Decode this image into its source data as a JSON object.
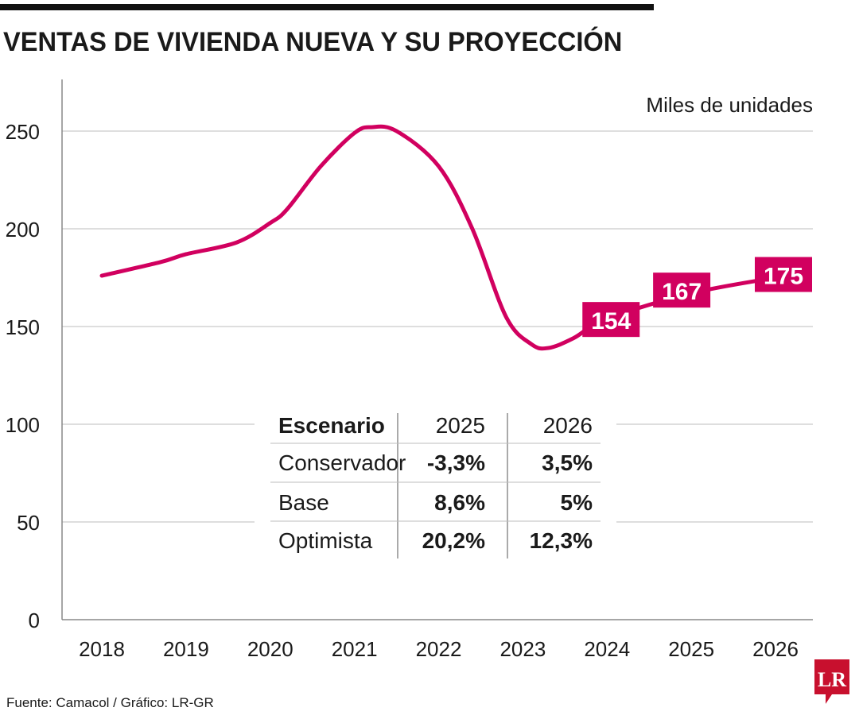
{
  "title": "VENTAS DE VIVIENDA NUEVA Y SU PROYECCIÓN",
  "source": "Fuente: Camacol / Gráfico: LR-GR",
  "logo": "LR",
  "colors": {
    "line": "#d1005f",
    "logo": "#c8102e",
    "grid": "#bdbdbd",
    "text": "#1a1a1a"
  },
  "chart_data": {
    "type": "line",
    "unit_label": "Miles de unidades",
    "xlim": [
      2018,
      2026
    ],
    "ylim": [
      0,
      250
    ],
    "grid": true,
    "x_ticks": [
      "2018",
      "2019",
      "2020",
      "2021",
      "2022",
      "2023",
      "2024",
      "2025",
      "2026"
    ],
    "y_ticks": [
      "0",
      "50",
      "100",
      "150",
      "200",
      "250"
    ],
    "points": [
      [
        2018,
        176
      ],
      [
        2018.7,
        183
      ],
      [
        2019,
        187
      ],
      [
        2019.6,
        193
      ],
      [
        2020,
        203
      ],
      [
        2020.2,
        210
      ],
      [
        2020.6,
        232
      ],
      [
        2021,
        249
      ],
      [
        2021.2,
        252
      ],
      [
        2021.5,
        250
      ],
      [
        2022,
        232
      ],
      [
        2022.4,
        200
      ],
      [
        2022.8,
        155
      ],
      [
        2023.1,
        141
      ],
      [
        2023.3,
        139
      ],
      [
        2023.6,
        144
      ],
      [
        2024,
        154
      ],
      [
        2025,
        167
      ],
      [
        2026,
        175
      ]
    ],
    "data_labels": [
      {
        "x": 2024,
        "y": 154,
        "text": "154"
      },
      {
        "x": 2025,
        "y": 167,
        "text": "167"
      },
      {
        "x": 2026,
        "y": 175,
        "text": "175"
      }
    ]
  },
  "table": {
    "headers": [
      "Escenario",
      "2025",
      "2026"
    ],
    "rows": [
      [
        "Conservador",
        "-3,3%",
        "3,5%"
      ],
      [
        "Base",
        "8,6%",
        "5%"
      ],
      [
        "Optimista",
        "20,2%",
        "12,3%"
      ]
    ]
  }
}
